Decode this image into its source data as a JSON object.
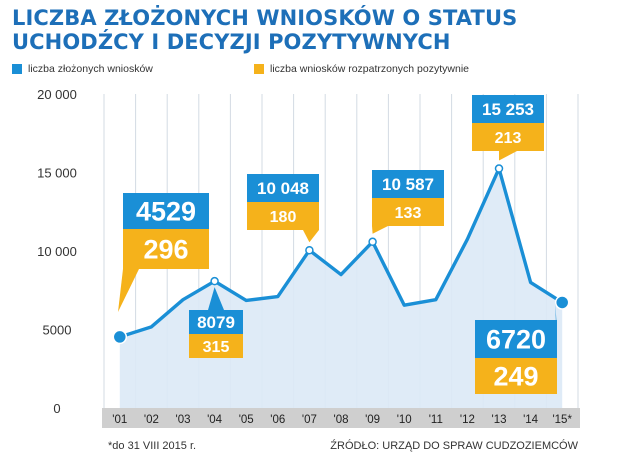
{
  "chart_data": {
    "type": "area",
    "title_lines": [
      "LICZBA ZŁOŻONYCH WNIOSKÓW O STATUS",
      "UCHODŹCY I DECYZJI POZYTYWNYCH"
    ],
    "categories": [
      "'01",
      "'02",
      "'03",
      "'04",
      "'05",
      "'06",
      "'07",
      "'08",
      "'09",
      "'10",
      "'11",
      "'12",
      "'13",
      "'14",
      "'15*"
    ],
    "series": [
      {
        "name": "liczba złożonych wniosków",
        "color": "#1a8fd6",
        "values": [
          4529,
          5170,
          6900,
          8079,
          6850,
          7100,
          10048,
          8500,
          10587,
          6550,
          6900,
          10750,
          15253,
          8000,
          6720
        ]
      },
      {
        "name": "liczba wniosków rozpatrzonych pozytywnie",
        "color": "#f5b21b"
      }
    ],
    "y_ticks": [
      "20 000",
      "15 000",
      "10 000",
      "5000",
      "0"
    ],
    "ylim": [
      0,
      20000
    ],
    "grid": "vertical",
    "callouts": [
      {
        "index": 0,
        "total": "4529",
        "positive": "296"
      },
      {
        "index": 3,
        "total": "8079",
        "positive": "315"
      },
      {
        "index": 6,
        "total": "10 048",
        "positive": "180"
      },
      {
        "index": 8,
        "total": "10 587",
        "positive": "133"
      },
      {
        "index": 12,
        "total": "15 253",
        "positive": "213"
      },
      {
        "index": 14,
        "total": "6720",
        "positive": "249"
      }
    ],
    "footnote": "*do 31 VIII 2015 r.",
    "source": "ŹRÓDŁO: URZĄD DO SPRAW CUDZOZIEMCÓW"
  }
}
